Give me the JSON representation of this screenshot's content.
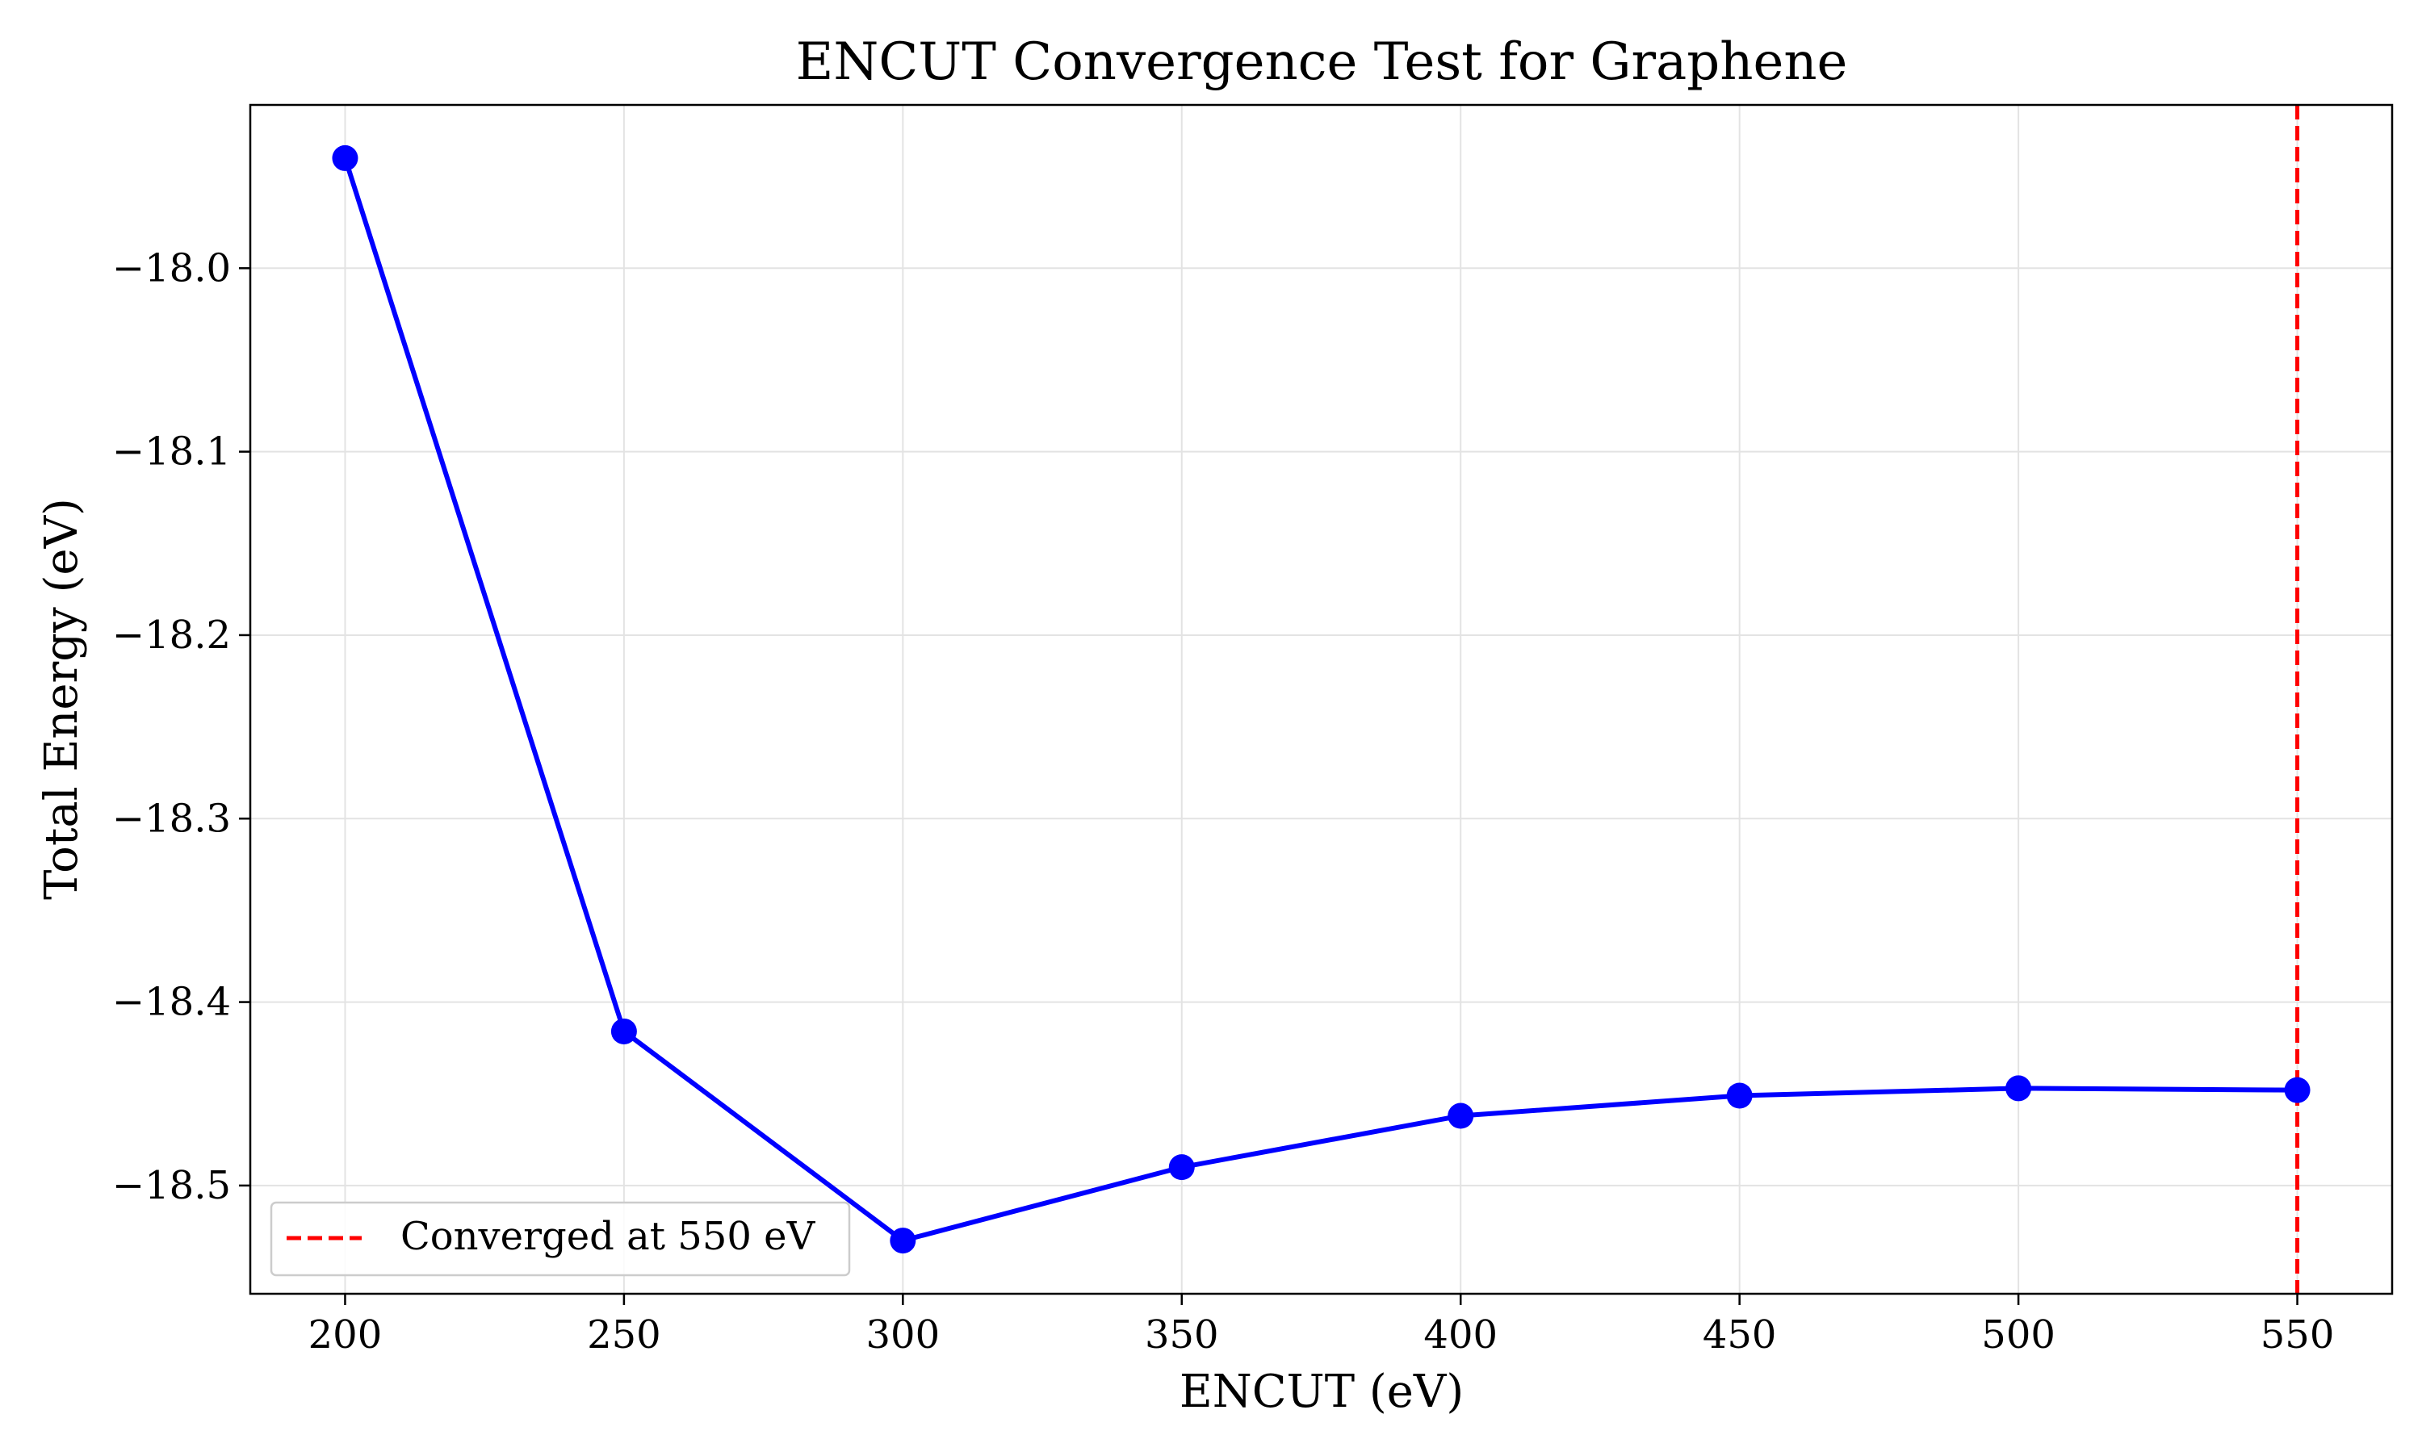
{
  "chart_data": {
    "type": "line",
    "title": "ENCUT Convergence Test for Graphene",
    "xlabel": "ENCUT (eV)",
    "ylabel": "Total Energy (eV)",
    "x": [
      200,
      250,
      300,
      350,
      400,
      450,
      500,
      550
    ],
    "series": [
      {
        "values": [
          -17.94,
          -18.416,
          -18.53,
          -18.49,
          -18.462,
          -18.451,
          -18.447,
          -18.448
        ],
        "color": "#0000ff",
        "marker": "circle"
      }
    ],
    "xlim": [
      183,
      567
    ],
    "ylim": [
      -18.559,
      -17.911
    ],
    "xticks": [
      200,
      250,
      300,
      350,
      400,
      450,
      500,
      550
    ],
    "xtick_labels": [
      "200",
      "250",
      "300",
      "350",
      "400",
      "450",
      "500",
      "550"
    ],
    "yticks": [
      -18.0,
      -18.1,
      -18.2,
      -18.3,
      -18.4,
      -18.5
    ],
    "ytick_labels": [
      "−18.0",
      "−18.1",
      "−18.2",
      "−18.3",
      "−18.4",
      "−18.5"
    ],
    "grid": true,
    "reference_line": {
      "orientation": "vertical",
      "x": 550,
      "style": "dashed",
      "color": "#ff0000",
      "label": "Converged at 550 eV"
    },
    "legend": {
      "position": "lower-left",
      "entries": [
        {
          "label": "Converged at 550 eV",
          "color": "#ff0000",
          "style": "dashed"
        }
      ]
    }
  }
}
